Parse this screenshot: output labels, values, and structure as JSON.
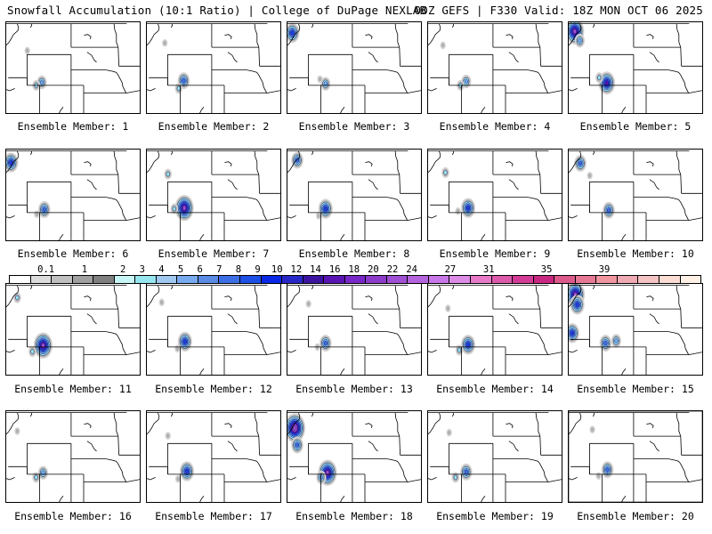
{
  "header": {
    "title_left": "Snowfall Accumulation (10:1 Ratio) | College of DuPage NEXLAB",
    "title_right": "00Z GEFS | F330 Valid: 18Z MON OCT 06 2025"
  },
  "colorbar": {
    "labels": [
      "0.1",
      "1",
      "2",
      "3",
      "4",
      "5",
      "6",
      "7",
      "8",
      "9",
      "10",
      "12",
      "14",
      "16",
      "18",
      "20",
      "22",
      "24",
      "27",
      "31",
      "35",
      "39"
    ],
    "colors": [
      "#ffffff",
      "#dcdcdc",
      "#c0c0c0",
      "#a0a0a0",
      "#808080",
      "#c8f5f5",
      "#96e6f0",
      "#a0c8f0",
      "#78aaf0",
      "#5a8ce6",
      "#3c6ee6",
      "#1e50e6",
      "#0a28e6",
      "#2828c8",
      "#3c14a0",
      "#5a14b4",
      "#7828c8",
      "#8c3cc8",
      "#a050d2",
      "#b464dc",
      "#c878e6",
      "#dc8ce6",
      "#e67ac8",
      "#dc5aaa",
      "#d23c96",
      "#c82882",
      "#dc5a8c",
      "#e67896",
      "#f096a0",
      "#f0aab4",
      "#f5c3c3",
      "#fadcd2",
      "#fff0e6"
    ]
  },
  "labels": {
    "member_prefix": "Ensemble Member:"
  },
  "members": [
    {
      "number": "1",
      "blobs": [
        {
          "x": -108.7,
          "y": 41.4,
          "s": 3
        },
        {
          "x": -109.6,
          "y": 41.0,
          "s": 2
        },
        {
          "x": -111.0,
          "y": 45.5,
          "s": 1
        }
      ]
    },
    {
      "number": "2",
      "blobs": [
        {
          "x": -108.5,
          "y": 41.6,
          "s": 4
        },
        {
          "x": -109.3,
          "y": 40.6,
          "s": 2
        },
        {
          "x": -111.5,
          "y": 46.5,
          "s": 1
        }
      ]
    },
    {
      "number": "3",
      "blobs": [
        {
          "x": -113.6,
          "y": 47.8,
          "s": 5
        },
        {
          "x": -108.3,
          "y": 41.2,
          "s": 3
        },
        {
          "x": -109.2,
          "y": 41.8,
          "s": 1
        }
      ]
    },
    {
      "number": "4",
      "blobs": [
        {
          "x": -108.3,
          "y": 41.5,
          "s": 3
        },
        {
          "x": -109.2,
          "y": 41.0,
          "s": 2
        },
        {
          "x": -112.0,
          "y": 46.2,
          "s": 1
        }
      ]
    },
    {
      "number": "5",
      "blobs": [
        {
          "x": -113.4,
          "y": 48.0,
          "s": 7
        },
        {
          "x": -112.6,
          "y": 46.8,
          "s": 3
        },
        {
          "x": -108.3,
          "y": 41.3,
          "s": 6
        },
        {
          "x": -109.5,
          "y": 42.0,
          "s": 2
        }
      ]
    },
    {
      "number": "6",
      "blobs": [
        {
          "x": -113.6,
          "y": 47.5,
          "s": 5
        },
        {
          "x": -108.3,
          "y": 41.4,
          "s": 4
        },
        {
          "x": -109.5,
          "y": 40.8,
          "s": 1
        }
      ]
    },
    {
      "number": "7",
      "blobs": [
        {
          "x": -108.4,
          "y": 41.6,
          "s": 7
        },
        {
          "x": -111.0,
          "y": 46.0,
          "s": 2
        },
        {
          "x": -110.0,
          "y": 41.5,
          "s": 2
        }
      ]
    },
    {
      "number": "8",
      "blobs": [
        {
          "x": -112.8,
          "y": 47.8,
          "s": 4
        },
        {
          "x": -108.3,
          "y": 41.5,
          "s": 5
        },
        {
          "x": -109.4,
          "y": 40.6,
          "s": 1
        }
      ]
    },
    {
      "number": "9",
      "blobs": [
        {
          "x": -108.0,
          "y": 41.6,
          "s": 5
        },
        {
          "x": -111.6,
          "y": 46.2,
          "s": 2
        },
        {
          "x": -109.6,
          "y": 41.2,
          "s": 1
        }
      ]
    },
    {
      "number": "10",
      "blobs": [
        {
          "x": -112.5,
          "y": 47.4,
          "s": 4
        },
        {
          "x": -108.0,
          "y": 41.3,
          "s": 4
        },
        {
          "x": -111.0,
          "y": 45.8,
          "s": 1
        }
      ]
    },
    {
      "number": "11",
      "blobs": [
        {
          "x": -108.5,
          "y": 41.2,
          "s": 7
        },
        {
          "x": -112.6,
          "y": 47.4,
          "s": 2
        },
        {
          "x": -110.2,
          "y": 40.4,
          "s": 2
        }
      ]
    },
    {
      "number": "12",
      "blobs": [
        {
          "x": -108.3,
          "y": 41.7,
          "s": 5
        },
        {
          "x": -112.0,
          "y": 46.8,
          "s": 1
        },
        {
          "x": -109.5,
          "y": 40.8,
          "s": 1
        }
      ]
    },
    {
      "number": "13",
      "blobs": [
        {
          "x": -108.3,
          "y": 41.5,
          "s": 4
        },
        {
          "x": -111.0,
          "y": 46.6,
          "s": 1
        },
        {
          "x": -109.6,
          "y": 41.0,
          "s": 1
        }
      ]
    },
    {
      "number": "14",
      "blobs": [
        {
          "x": -108.0,
          "y": 41.3,
          "s": 5
        },
        {
          "x": -111.2,
          "y": 46.0,
          "s": 1
        },
        {
          "x": -109.4,
          "y": 40.6,
          "s": 2
        }
      ]
    },
    {
      "number": "15",
      "blobs": [
        {
          "x": -113.3,
          "y": 47.8,
          "s": 7
        },
        {
          "x": -113.0,
          "y": 46.5,
          "s": 5
        },
        {
          "x": -113.8,
          "y": 42.8,
          "s": 5
        },
        {
          "x": -108.5,
          "y": 41.5,
          "s": 4
        },
        {
          "x": -106.8,
          "y": 41.8,
          "s": 3
        }
      ]
    },
    {
      "number": "16",
      "blobs": [
        {
          "x": -108.5,
          "y": 41.2,
          "s": 3
        },
        {
          "x": -109.6,
          "y": 40.6,
          "s": 2
        },
        {
          "x": -112.6,
          "y": 46.6,
          "s": 1
        }
      ]
    },
    {
      "number": "17",
      "blobs": [
        {
          "x": -108.0,
          "y": 41.4,
          "s": 5
        },
        {
          "x": -109.4,
          "y": 40.4,
          "s": 1
        },
        {
          "x": -111.0,
          "y": 46.0,
          "s": 1
        }
      ]
    },
    {
      "number": "18",
      "blobs": [
        {
          "x": -113.2,
          "y": 47.0,
          "s": 8
        },
        {
          "x": -112.8,
          "y": 44.8,
          "s": 4
        },
        {
          "x": -108.0,
          "y": 41.2,
          "s": 7
        },
        {
          "x": -109.0,
          "y": 40.6,
          "s": 3
        }
      ]
    },
    {
      "number": "19",
      "blobs": [
        {
          "x": -108.3,
          "y": 41.3,
          "s": 4
        },
        {
          "x": -111.0,
          "y": 46.4,
          "s": 1
        },
        {
          "x": -110.0,
          "y": 40.6,
          "s": 2
        }
      ]
    },
    {
      "number": "20",
      "blobs": [
        {
          "x": -108.2,
          "y": 41.6,
          "s": 4
        },
        {
          "x": -110.6,
          "y": 46.8,
          "s": 1
        },
        {
          "x": -109.6,
          "y": 40.8,
          "s": 1
        }
      ]
    }
  ]
}
